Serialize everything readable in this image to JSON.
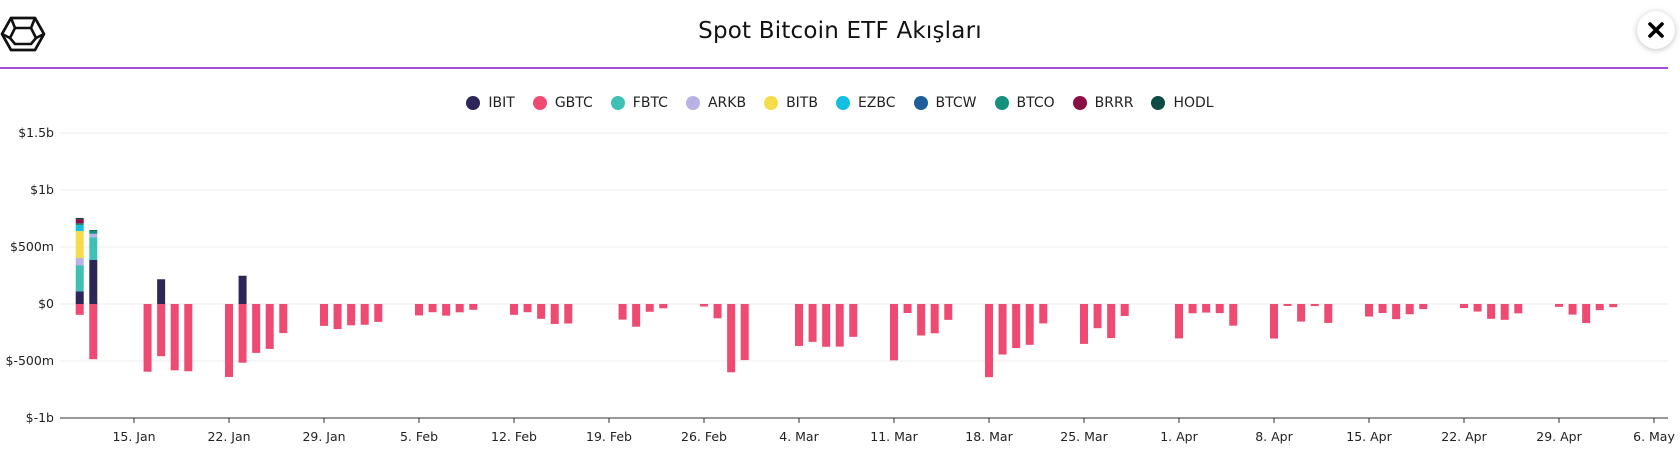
{
  "header": {
    "title": "Spot Bitcoin ETF Akışları",
    "close_label": "✕"
  },
  "colors": {
    "accent_line": "#a64fd6"
  },
  "chart_data": {
    "type": "bar",
    "stacked": true,
    "title": "Spot Bitcoin ETF Akışları",
    "xlabel": "",
    "ylabel": "",
    "ylim": [
      -1000,
      1500
    ],
    "y_ticks": [
      {
        "value": 1500,
        "label": "$1.5b"
      },
      {
        "value": 1000,
        "label": "$1b"
      },
      {
        "value": 500,
        "label": "$500m"
      },
      {
        "value": 0,
        "label": "$0"
      },
      {
        "value": -500,
        "label": "$-500m"
      },
      {
        "value": -1000,
        "label": "$-1b"
      }
    ],
    "x_ticks": [
      "15. Jan",
      "22. Jan",
      "29. Jan",
      "5. Feb",
      "12. Feb",
      "19. Feb",
      "26. Feb",
      "4. Mar",
      "11. Mar",
      "18. Mar",
      "25. Mar",
      "1. Apr",
      "8. Apr",
      "15. Apr",
      "22. Apr",
      "29. Apr",
      "6. May"
    ],
    "grid": true,
    "legend_position": "top",
    "series_names": [
      "IBIT",
      "GBTC",
      "FBTC",
      "ARKB",
      "BITB",
      "EZBC",
      "BTCW",
      "BTCO",
      "BRRR",
      "HODL"
    ],
    "series_colors": [
      "#2d2658",
      "#ee4a72",
      "#3ec1b4",
      "#b9b2e6",
      "#f7dc4a",
      "#12bfe0",
      "#1e5f9b",
      "#13907e",
      "#8a0f42",
      "#0f4b45"
    ],
    "categories": [
      "2024-01-11",
      "2024-01-12",
      "2024-01-16",
      "2024-01-17",
      "2024-01-18",
      "2024-01-19",
      "2024-01-22",
      "2024-01-23",
      "2024-01-24",
      "2024-01-25",
      "2024-01-26",
      "2024-01-29",
      "2024-01-30",
      "2024-01-31",
      "2024-02-01",
      "2024-02-02",
      "2024-02-05",
      "2024-02-06",
      "2024-02-07",
      "2024-02-08",
      "2024-02-09",
      "2024-02-12",
      "2024-02-13",
      "2024-02-14",
      "2024-02-15",
      "2024-02-16",
      "2024-02-20",
      "2024-02-21",
      "2024-02-22",
      "2024-02-23",
      "2024-02-26",
      "2024-02-27",
      "2024-02-28",
      "2024-02-29",
      "2024-03-01",
      "2024-03-04",
      "2024-03-05",
      "2024-03-06",
      "2024-03-07",
      "2024-03-08",
      "2024-03-11",
      "2024-03-12",
      "2024-03-13",
      "2024-03-14",
      "2024-03-15",
      "2024-03-18",
      "2024-03-19",
      "2024-03-20",
      "2024-03-21",
      "2024-03-22",
      "2024-03-25",
      "2024-03-26",
      "2024-03-27",
      "2024-03-28",
      "2024-04-01",
      "2024-04-02",
      "2024-04-03",
      "2024-04-04",
      "2024-04-05",
      "2024-04-08",
      "2024-04-09",
      "2024-04-10",
      "2024-04-11",
      "2024-04-12",
      "2024-04-15",
      "2024-04-16",
      "2024-04-17",
      "2024-04-18",
      "2024-04-19",
      "2024-04-22",
      "2024-04-23",
      "2024-04-24",
      "2024-04-25",
      "2024-04-26",
      "2024-04-29",
      "2024-04-30",
      "2024-05-01",
      "2024-05-02",
      "2024-05-03",
      "2024-05-06"
    ],
    "series": [
      {
        "name": "IBIT",
        "values": [
          111,
          386,
          0,
          217,
          0,
          0,
          0,
          248,
          0,
          0,
          0,
          0,
          0,
          0,
          0,
          0,
          0,
          0,
          0,
          0,
          0,
          0,
          0,
          0,
          0,
          0,
          0,
          0,
          0,
          0,
          0,
          0,
          0,
          0,
          0,
          0,
          0,
          0,
          0,
          0,
          0,
          0,
          0,
          0,
          0,
          0,
          0,
          0,
          0,
          0,
          0,
          0,
          0,
          0,
          0,
          0,
          0,
          0,
          0,
          0,
          0,
          0,
          0,
          0,
          0,
          0,
          0,
          0,
          0,
          0,
          0,
          0,
          0,
          0,
          0,
          0,
          0,
          0,
          0,
          0
        ]
      },
      {
        "name": "GBTC",
        "values": [
          -95,
          -484,
          -594,
          -458,
          -582,
          -590,
          -640,
          -515,
          -429,
          -394,
          -255,
          -192,
          -220,
          -187,
          -182,
          -157,
          -100,
          -72,
          -102,
          -73,
          -51,
          -95,
          -72,
          -130,
          -175,
          -171,
          -137,
          -199,
          -68,
          -38,
          -22,
          -125,
          -599,
          -492,
          0,
          -368,
          -332,
          -375,
          -374,
          -288,
          -494,
          -79,
          -276,
          -257,
          -139,
          -642,
          -443,
          -386,
          -358,
          -170,
          -350,
          -212,
          -299,
          -105,
          -302,
          -81,
          -75,
          -80,
          -190,
          -303,
          -17,
          -154,
          -18,
          -166,
          -110,
          -79,
          -133,
          -90,
          -45,
          -35,
          -66,
          -130,
          -139,
          -82,
          -25,
          -93,
          -167,
          -54,
          -28,
          0
        ]
      },
      {
        "name": "FBTC",
        "values": [
          227,
          200,
          0,
          0,
          0,
          0,
          0,
          0,
          0,
          0,
          0,
          0,
          0,
          0,
          0,
          0,
          0,
          0,
          0,
          0,
          0,
          0,
          0,
          0,
          0,
          0,
          0,
          0,
          0,
          0,
          0,
          0,
          0,
          0,
          0,
          0,
          0,
          0,
          0,
          0,
          0,
          0,
          0,
          0,
          0,
          0,
          0,
          0,
          0,
          0,
          0,
          0,
          0,
          0,
          0,
          0,
          0,
          0,
          0,
          0,
          0,
          0,
          0,
          0,
          0,
          0,
          0,
          0,
          0,
          0,
          0,
          0,
          0,
          0,
          0,
          0,
          0,
          0,
          0,
          0
        ]
      },
      {
        "name": "ARKB",
        "values": [
          65,
          30,
          0,
          0,
          0,
          0,
          0,
          0,
          0,
          0,
          0,
          0,
          0,
          0,
          0,
          0,
          0,
          0,
          0,
          0,
          0,
          0,
          0,
          0,
          0,
          0,
          0,
          0,
          0,
          0,
          0,
          0,
          0,
          0,
          0,
          0,
          0,
          0,
          0,
          0,
          0,
          0,
          0,
          0,
          0,
          0,
          0,
          0,
          0,
          0,
          0,
          0,
          0,
          0,
          0,
          0,
          0,
          0,
          0,
          0,
          0,
          0,
          0,
          0,
          0,
          0,
          0,
          0,
          0,
          0,
          0,
          0,
          0,
          0,
          0,
          0,
          0,
          0,
          0,
          0
        ]
      },
      {
        "name": "BITB",
        "values": [
          237,
          0,
          0,
          0,
          0,
          0,
          0,
          0,
          0,
          0,
          0,
          0,
          0,
          0,
          0,
          0,
          0,
          0,
          0,
          0,
          0,
          0,
          0,
          0,
          0,
          0,
          0,
          0,
          0,
          0,
          0,
          0,
          0,
          0,
          0,
          0,
          0,
          0,
          0,
          0,
          0,
          0,
          0,
          0,
          0,
          0,
          0,
          0,
          0,
          0,
          0,
          0,
          0,
          0,
          0,
          0,
          0,
          0,
          0,
          0,
          0,
          0,
          0,
          0,
          0,
          0,
          0,
          0,
          0,
          0,
          0,
          0,
          0,
          0,
          0,
          0,
          0,
          0,
          0,
          0
        ]
      },
      {
        "name": "EZBC",
        "values": [
          50,
          0,
          0,
          0,
          0,
          0,
          0,
          0,
          0,
          0,
          0,
          0,
          0,
          0,
          0,
          0,
          0,
          0,
          0,
          0,
          0,
          0,
          0,
          0,
          0,
          0,
          0,
          0,
          0,
          0,
          0,
          0,
          0,
          0,
          0,
          0,
          0,
          0,
          0,
          0,
          0,
          0,
          0,
          0,
          0,
          0,
          0,
          0,
          0,
          0,
          0,
          0,
          0,
          0,
          0,
          0,
          0,
          0,
          0,
          0,
          0,
          0,
          0,
          0,
          0,
          0,
          0,
          0,
          0,
          0,
          0,
          0,
          0,
          0,
          0,
          0,
          0,
          0,
          0,
          0
        ]
      },
      {
        "name": "BTCW",
        "values": [
          0,
          0,
          0,
          0,
          0,
          0,
          0,
          0,
          0,
          0,
          0,
          0,
          0,
          0,
          0,
          0,
          0,
          0,
          0,
          0,
          0,
          0,
          0,
          0,
          0,
          0,
          0,
          0,
          0,
          0,
          0,
          0,
          0,
          0,
          0,
          0,
          0,
          0,
          0,
          0,
          0,
          0,
          0,
          0,
          0,
          0,
          0,
          0,
          0,
          0,
          0,
          0,
          0,
          0,
          0,
          0,
          0,
          0,
          0,
          0,
          0,
          0,
          0,
          0,
          0,
          0,
          0,
          0,
          0,
          0,
          0,
          0,
          0,
          0,
          0,
          0,
          0,
          0,
          0,
          0
        ]
      },
      {
        "name": "BTCO",
        "values": [
          17,
          29,
          0,
          0,
          0,
          0,
          0,
          0,
          0,
          0,
          0,
          0,
          0,
          0,
          0,
          0,
          0,
          0,
          0,
          0,
          0,
          0,
          0,
          0,
          0,
          0,
          0,
          0,
          0,
          0,
          0,
          0,
          0,
          0,
          0,
          0,
          0,
          0,
          0,
          0,
          0,
          0,
          0,
          0,
          0,
          0,
          0,
          0,
          0,
          0,
          0,
          0,
          0,
          0,
          0,
          0,
          0,
          0,
          0,
          0,
          0,
          0,
          0,
          0,
          0,
          0,
          0,
          0,
          0,
          0,
          0,
          0,
          0,
          0,
          0,
          0,
          0,
          0,
          0,
          0
        ]
      },
      {
        "name": "BRRR",
        "values": [
          38,
          0,
          0,
          0,
          0,
          0,
          0,
          0,
          0,
          0,
          0,
          0,
          0,
          0,
          0,
          0,
          0,
          0,
          0,
          0,
          0,
          0,
          0,
          0,
          0,
          0,
          0,
          0,
          0,
          0,
          0,
          0,
          0,
          0,
          0,
          0,
          0,
          0,
          0,
          0,
          0,
          0,
          0,
          0,
          0,
          0,
          0,
          0,
          0,
          0,
          0,
          0,
          0,
          0,
          0,
          0,
          0,
          0,
          0,
          0,
          0,
          0,
          0,
          0,
          0,
          0,
          0,
          0,
          0,
          0,
          0,
          0,
          0,
          0,
          0,
          0,
          0,
          0,
          0,
          0
        ]
      },
      {
        "name": "HODL",
        "values": [
          10,
          4,
          0,
          0,
          0,
          0,
          0,
          0,
          0,
          0,
          0,
          0,
          0,
          0,
          0,
          0,
          0,
          0,
          0,
          0,
          0,
          0,
          0,
          0,
          0,
          0,
          0,
          0,
          0,
          0,
          0,
          0,
          0,
          0,
          0,
          0,
          0,
          0,
          0,
          0,
          0,
          0,
          0,
          0,
          0,
          0,
          0,
          0,
          0,
          0,
          0,
          0,
          0,
          0,
          0,
          0,
          0,
          0,
          0,
          0,
          0,
          0,
          0,
          0,
          0,
          0,
          0,
          0,
          0,
          0,
          0,
          0,
          0,
          0,
          0,
          0,
          0,
          0,
          0,
          0
        ]
      }
    ]
  }
}
